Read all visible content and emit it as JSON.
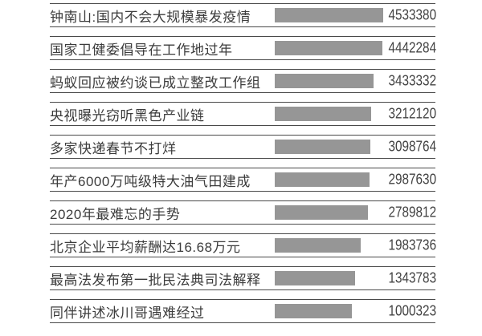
{
  "chart_data": {
    "type": "bar",
    "orientation": "horizontal",
    "title": "",
    "xlabel": "",
    "ylabel": "",
    "legend": null,
    "grid": false,
    "value_labels_shown": true,
    "categories": [
      "钟南山:国内不会大规模暴发疫情",
      "国家卫健委倡导在工作地过年",
      "蚂蚁回应被约谈已成立整改工作组",
      "央视曝光窃听黑色产业链",
      "多家快递春节不打烊",
      "年产6000万吨级特大油气田建成",
      "2020年最难忘的手势",
      "北京企业平均薪酬达16.68万元",
      "最高法发布第一批民法典司法解释",
      "同伴讲述冰川哥遇难经过"
    ],
    "values": [
      4533380,
      4442284,
      3433332,
      3212120,
      3098764,
      2987630,
      2789812,
      1983736,
      1343783,
      1000323
    ]
  },
  "colors": {
    "bar": "#969696",
    "rule": "#4a4a4a",
    "title_text": "#3c3c3c",
    "value_text": "#434343",
    "background": "#ffffff"
  }
}
